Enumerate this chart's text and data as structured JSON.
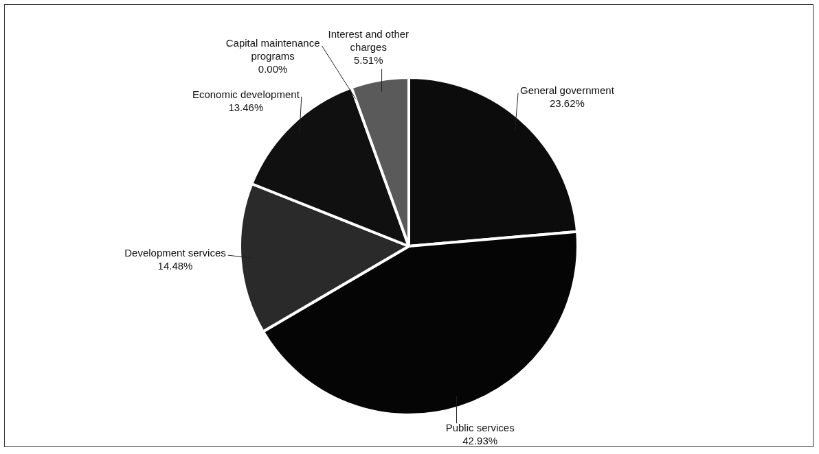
{
  "chart_data": {
    "type": "pie",
    "categories": [
      "General government",
      "Public services",
      "Development services",
      "Economic development",
      "Capital maintenance programs",
      "Interest and other charges"
    ],
    "values": [
      23.62,
      42.93,
      14.48,
      13.46,
      0.0,
      5.51
    ],
    "value_labels": [
      "23.62%",
      "42.93%",
      "14.48%",
      "13.46%",
      "0.00%",
      "5.51%"
    ],
    "colors": [
      "#0c0c0c",
      "#050505",
      "#2a2a2a",
      "#101010",
      "#1a1a1a",
      "#5a5a5a"
    ],
    "legend": false
  }
}
